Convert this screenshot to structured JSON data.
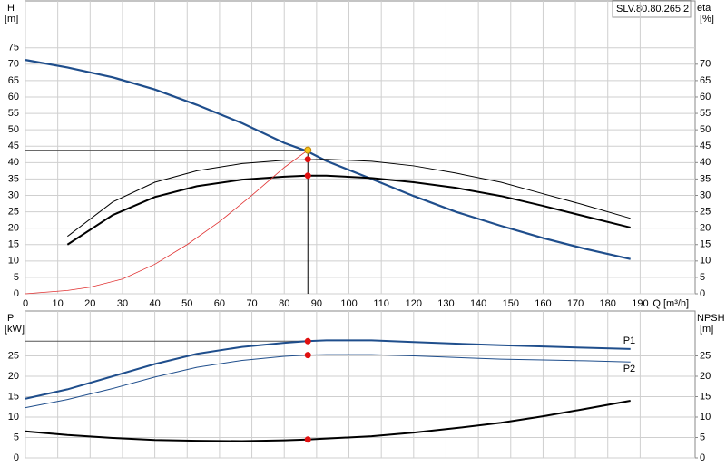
{
  "chart_data": [
    {
      "type": "line",
      "title": "SLV.80.80.265.2",
      "y_label": "H",
      "y_unit": "[m]",
      "y2_label": "eta",
      "y2_unit": "[%]",
      "x_label": "Q [m³/h]",
      "xlim": [
        0,
        207
      ],
      "ylim": [
        0,
        89.3
      ],
      "y2lim": [
        0,
        89.3
      ],
      "grid": true,
      "xticks": [
        0,
        10,
        20,
        30,
        40,
        50,
        60,
        70,
        80,
        90,
        100,
        110,
        120,
        130,
        140,
        150,
        160,
        170,
        180,
        190
      ],
      "yticks": [
        0,
        5,
        10,
        15,
        20,
        25,
        30,
        35,
        40,
        45,
        50,
        55,
        60,
        65,
        70,
        75
      ],
      "y2ticks": [
        0,
        5,
        10,
        15,
        20,
        25,
        30,
        35,
        40,
        45,
        50,
        55,
        60,
        65,
        70
      ],
      "series": [
        {
          "color": "#1f4e8c",
          "width": 2.2,
          "x": [
            0,
            13,
            27,
            40,
            53,
            67,
            80,
            87,
            93,
            107,
            120,
            133,
            147,
            160,
            173,
            187
          ],
          "values": [
            71.3,
            69,
            66,
            62.3,
            57.6,
            52,
            46,
            43.5,
            40.5,
            35,
            29.8,
            25,
            20.7,
            17,
            13.7,
            10.6
          ]
        },
        {
          "color": "#000000",
          "width": 2,
          "axis": "y2",
          "x": [
            13,
            27,
            40,
            53,
            67,
            80,
            87,
            93,
            107,
            120,
            133,
            147,
            160,
            173,
            187
          ],
          "values": [
            15,
            24,
            29.5,
            32.8,
            34.8,
            35.7,
            36,
            36,
            35.3,
            34,
            32.3,
            29.8,
            26.8,
            23.6,
            20.2
          ]
        },
        {
          "color": "#000000",
          "width": 1,
          "axis": "y2",
          "x": [
            13,
            27,
            40,
            53,
            67,
            80,
            93,
            107,
            120,
            133,
            147,
            160,
            173,
            187
          ],
          "values": [
            17.5,
            28,
            34,
            37.5,
            39.7,
            40.7,
            41,
            40.4,
            39,
            36.8,
            34,
            30.5,
            27,
            23
          ]
        },
        {
          "color": "#e03030",
          "width": 0.8,
          "x": [
            0,
            13,
            20,
            30,
            40,
            50,
            60,
            70,
            80,
            87.3
          ],
          "values": [
            0,
            1,
            2,
            4.5,
            9,
            15,
            22,
            30,
            38.5,
            43.8
          ]
        }
      ],
      "points": [
        {
          "x": 87.3,
          "y": 43.8,
          "color": "#f5c518"
        },
        {
          "x": 87.3,
          "y": 41,
          "color": "#e01010"
        },
        {
          "x": 87.3,
          "y": 36,
          "color": "#e01010"
        }
      ]
    },
    {
      "type": "line",
      "y_label": "P",
      "y_unit": "[kW]",
      "y2_label": "NPSH",
      "y2_unit": "[m]",
      "xlim": [
        0,
        207
      ],
      "ylim": [
        0,
        36
      ],
      "y2lim": [
        0,
        36
      ],
      "grid": true,
      "xticks": [
        0,
        10,
        20,
        30,
        40,
        50,
        60,
        70,
        80,
        90,
        100,
        110,
        120,
        130,
        140,
        150,
        160,
        170,
        180,
        190
      ],
      "yticks": [
        0,
        5,
        10,
        15,
        20,
        25
      ],
      "y2ticks": [
        0,
        5,
        10,
        15,
        20,
        25
      ],
      "series": [
        {
          "name": "P1",
          "color": "#1f4e8c",
          "width": 2,
          "x": [
            0,
            13,
            27,
            40,
            53,
            67,
            80,
            87,
            93,
            107,
            120,
            133,
            147,
            160,
            173,
            187
          ],
          "values": [
            14.5,
            16.8,
            20,
            23,
            25.5,
            27.2,
            28.2,
            28.6,
            28.8,
            28.8,
            28.4,
            28,
            27.6,
            27.3,
            27,
            26.7
          ]
        },
        {
          "name": "P2",
          "color": "#1f4e8c",
          "width": 1,
          "x": [
            0,
            13,
            27,
            40,
            53,
            67,
            80,
            87,
            93,
            107,
            120,
            133,
            147,
            160,
            173,
            187
          ],
          "values": [
            12.3,
            14.3,
            17,
            19.8,
            22.2,
            23.9,
            24.9,
            25.2,
            25.3,
            25.3,
            25,
            24.6,
            24.2,
            24,
            23.8,
            23.5
          ]
        },
        {
          "color": "#000000",
          "width": 2,
          "axis": "y2",
          "x": [
            0,
            13,
            27,
            40,
            53,
            67,
            80,
            87,
            107,
            120,
            133,
            147,
            160,
            173,
            187
          ],
          "values": [
            6.5,
            5.6,
            4.9,
            4.4,
            4.2,
            4.1,
            4.3,
            4.5,
            5.3,
            6.2,
            7.3,
            8.6,
            10.2,
            12,
            14
          ]
        }
      ],
      "points": [
        {
          "x": 87.3,
          "y": 28.6,
          "color": "#e01010"
        },
        {
          "x": 87.3,
          "y": 25.2,
          "color": "#e01010"
        },
        {
          "x": 87.3,
          "y": 4.5,
          "color": "#e01010"
        }
      ]
    }
  ]
}
